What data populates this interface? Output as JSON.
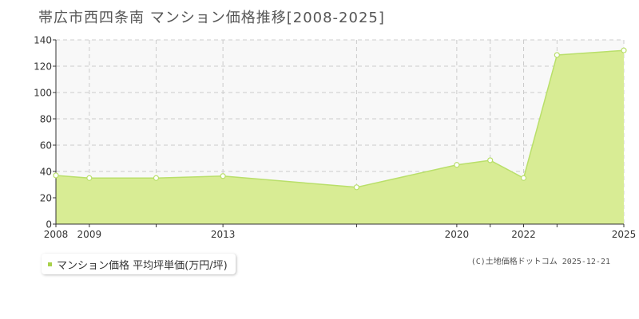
{
  "title": "帯広市西四条南 マンション価格推移[2008-2025]",
  "legend": {
    "label": "マンション価格 平均坪単価(万円/坪)"
  },
  "copyright": "(C)土地価格ドットコム 2025-12-21",
  "colors": {
    "plot_background": "#f8f8f8",
    "area_fill": "#d8ec94",
    "line": "#b9df6a",
    "marker_fill": "#ffffff",
    "grid": "#cccccc",
    "axis": "#333333"
  },
  "chart_data": {
    "type": "area",
    "title": "帯広市西四条南 マンション価格推移[2008-2025]",
    "xlabel": "",
    "ylabel": "",
    "xlim": [
      2008,
      2025
    ],
    "ylim": [
      0,
      140
    ],
    "yticks": [
      0,
      20,
      40,
      60,
      80,
      100,
      120,
      140
    ],
    "xtick_labels": [
      {
        "x": 2008,
        "label": "2008"
      },
      {
        "x": 2009,
        "label": "2009"
      },
      {
        "x": 2013,
        "label": "2013"
      },
      {
        "x": 2020,
        "label": "2020"
      },
      {
        "x": 2022,
        "label": "2022"
      },
      {
        "x": 2025,
        "label": "2025"
      }
    ],
    "x_unlabeled_ticks": [
      2011,
      2017,
      2021,
      2023
    ],
    "grid": true,
    "legend_position": "bottom-left",
    "series": [
      {
        "name": "マンション価格 平均坪単価(万円/坪)",
        "x": [
          2008,
          2009,
          2011,
          2013,
          2017,
          2020,
          2021,
          2022,
          2023,
          2025
        ],
        "y": [
          37,
          35,
          35,
          36.5,
          28,
          45,
          48.5,
          35,
          128.5,
          132
        ]
      }
    ]
  }
}
